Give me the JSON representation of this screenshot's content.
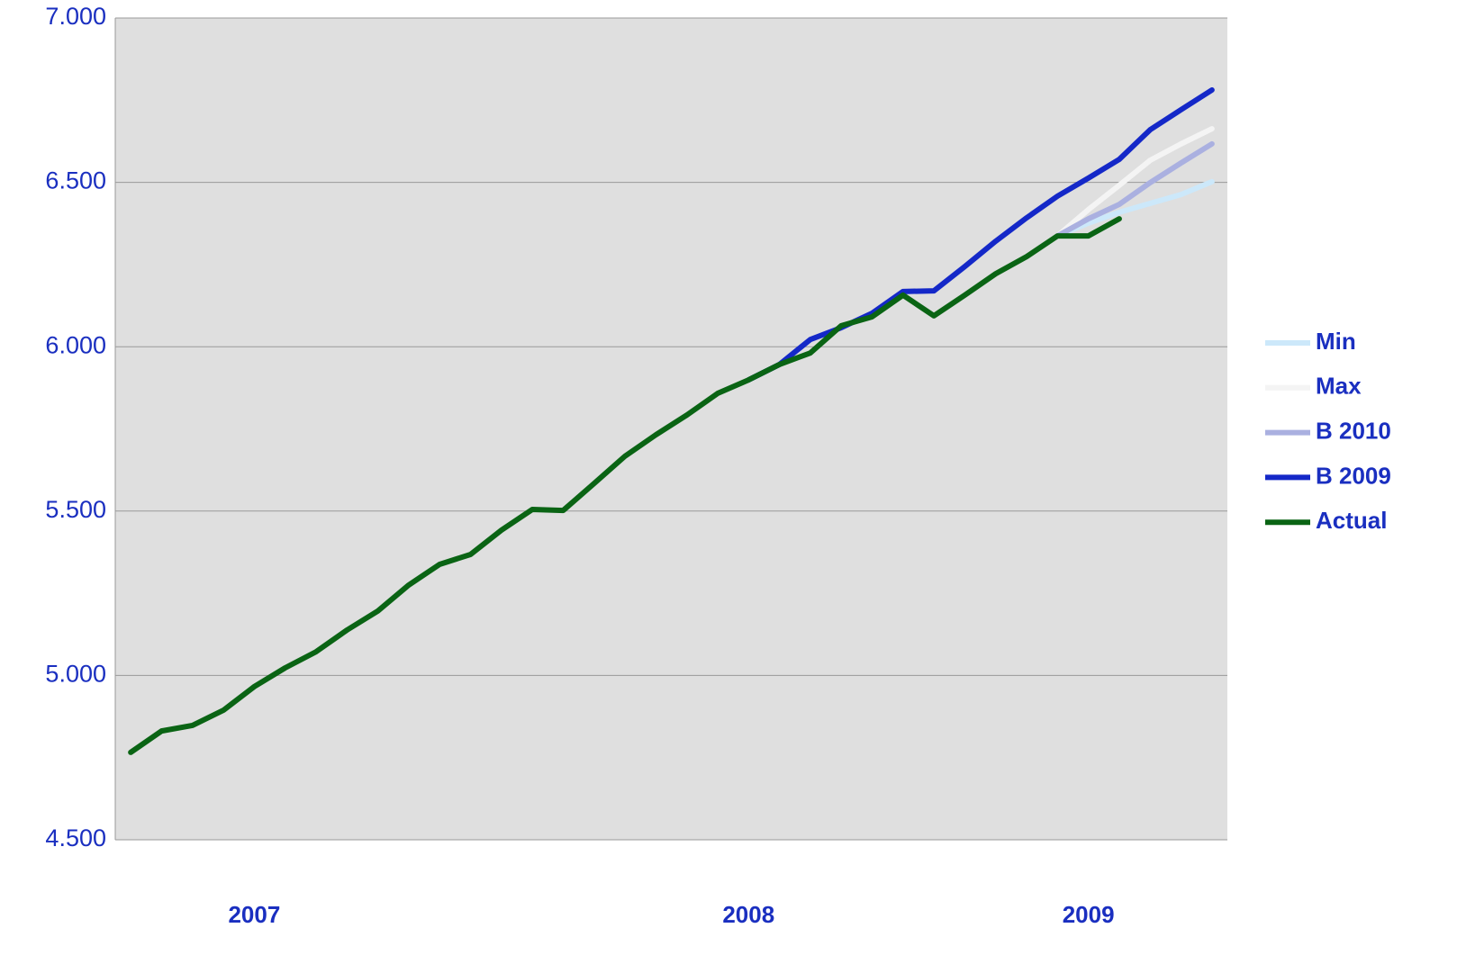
{
  "chart_data": {
    "type": "line",
    "categories": [
      null,
      null,
      null,
      null,
      "2007",
      null,
      null,
      null,
      null,
      null,
      null,
      null,
      null,
      null,
      null,
      null,
      null,
      null,
      null,
      null,
      "2008",
      null,
      null,
      null,
      null,
      null,
      null,
      null,
      null,
      null,
      null,
      "2009",
      null,
      null,
      null,
      null
    ],
    "series": [
      {
        "name": "Min",
        "color": "#cce8fa",
        "values": [
          null,
          null,
          null,
          null,
          null,
          null,
          null,
          null,
          null,
          null,
          null,
          null,
          null,
          null,
          null,
          null,
          null,
          null,
          null,
          null,
          null,
          null,
          null,
          null,
          null,
          null,
          null,
          null,
          null,
          null,
          6337,
          6376,
          6409,
          6436,
          6463,
          6502
        ]
      },
      {
        "name": "Max",
        "color": "#f4f4f4",
        "values": [
          null,
          null,
          null,
          null,
          null,
          null,
          null,
          null,
          null,
          null,
          null,
          null,
          null,
          null,
          null,
          null,
          null,
          null,
          null,
          null,
          null,
          null,
          null,
          null,
          null,
          null,
          null,
          null,
          null,
          null,
          6337,
          6417,
          6491,
          6567,
          6617,
          6663
        ]
      },
      {
        "name": "B 2010",
        "color": "#aab0e0",
        "values": [
          null,
          null,
          null,
          null,
          null,
          null,
          null,
          null,
          null,
          null,
          null,
          null,
          null,
          null,
          null,
          null,
          null,
          null,
          null,
          null,
          null,
          null,
          null,
          null,
          null,
          null,
          null,
          null,
          null,
          null,
          6337,
          6389,
          6433,
          6499,
          6559,
          6617
        ]
      },
      {
        "name": "B 2009",
        "color": "#1428c8",
        "values": [
          null,
          null,
          null,
          null,
          null,
          null,
          null,
          null,
          null,
          null,
          null,
          null,
          null,
          null,
          null,
          null,
          null,
          null,
          null,
          null,
          5899,
          5946,
          6022,
          6058,
          6102,
          6168,
          6170,
          6244,
          6321,
          6392,
          6458,
          6513,
          6570,
          6660,
          6721,
          6781
        ]
      },
      {
        "name": "Actual",
        "color": "#0a6414",
        "values": [
          4766,
          4831,
          4848,
          4894,
          4966,
          5023,
          5072,
          5138,
          5196,
          5275,
          5338,
          5368,
          5442,
          5505,
          5502,
          5584,
          5667,
          5732,
          5792,
          5858,
          5899,
          5946,
          5981,
          6064,
          6091,
          6157,
          6094,
          6157,
          6222,
          6274,
          6337,
          6337,
          6389,
          null,
          null,
          null
        ]
      }
    ],
    "ylim": [
      4500,
      7000
    ],
    "yticks": [
      {
        "value": 4500,
        "label": "4.500"
      },
      {
        "value": 5000,
        "label": "5.000"
      },
      {
        "value": 5500,
        "label": "5.500"
      },
      {
        "value": 6000,
        "label": "6.000"
      },
      {
        "value": 6500,
        "label": "6.500"
      },
      {
        "value": 7000,
        "label": "7.000"
      }
    ],
    "grid": true,
    "legend": "right"
  }
}
